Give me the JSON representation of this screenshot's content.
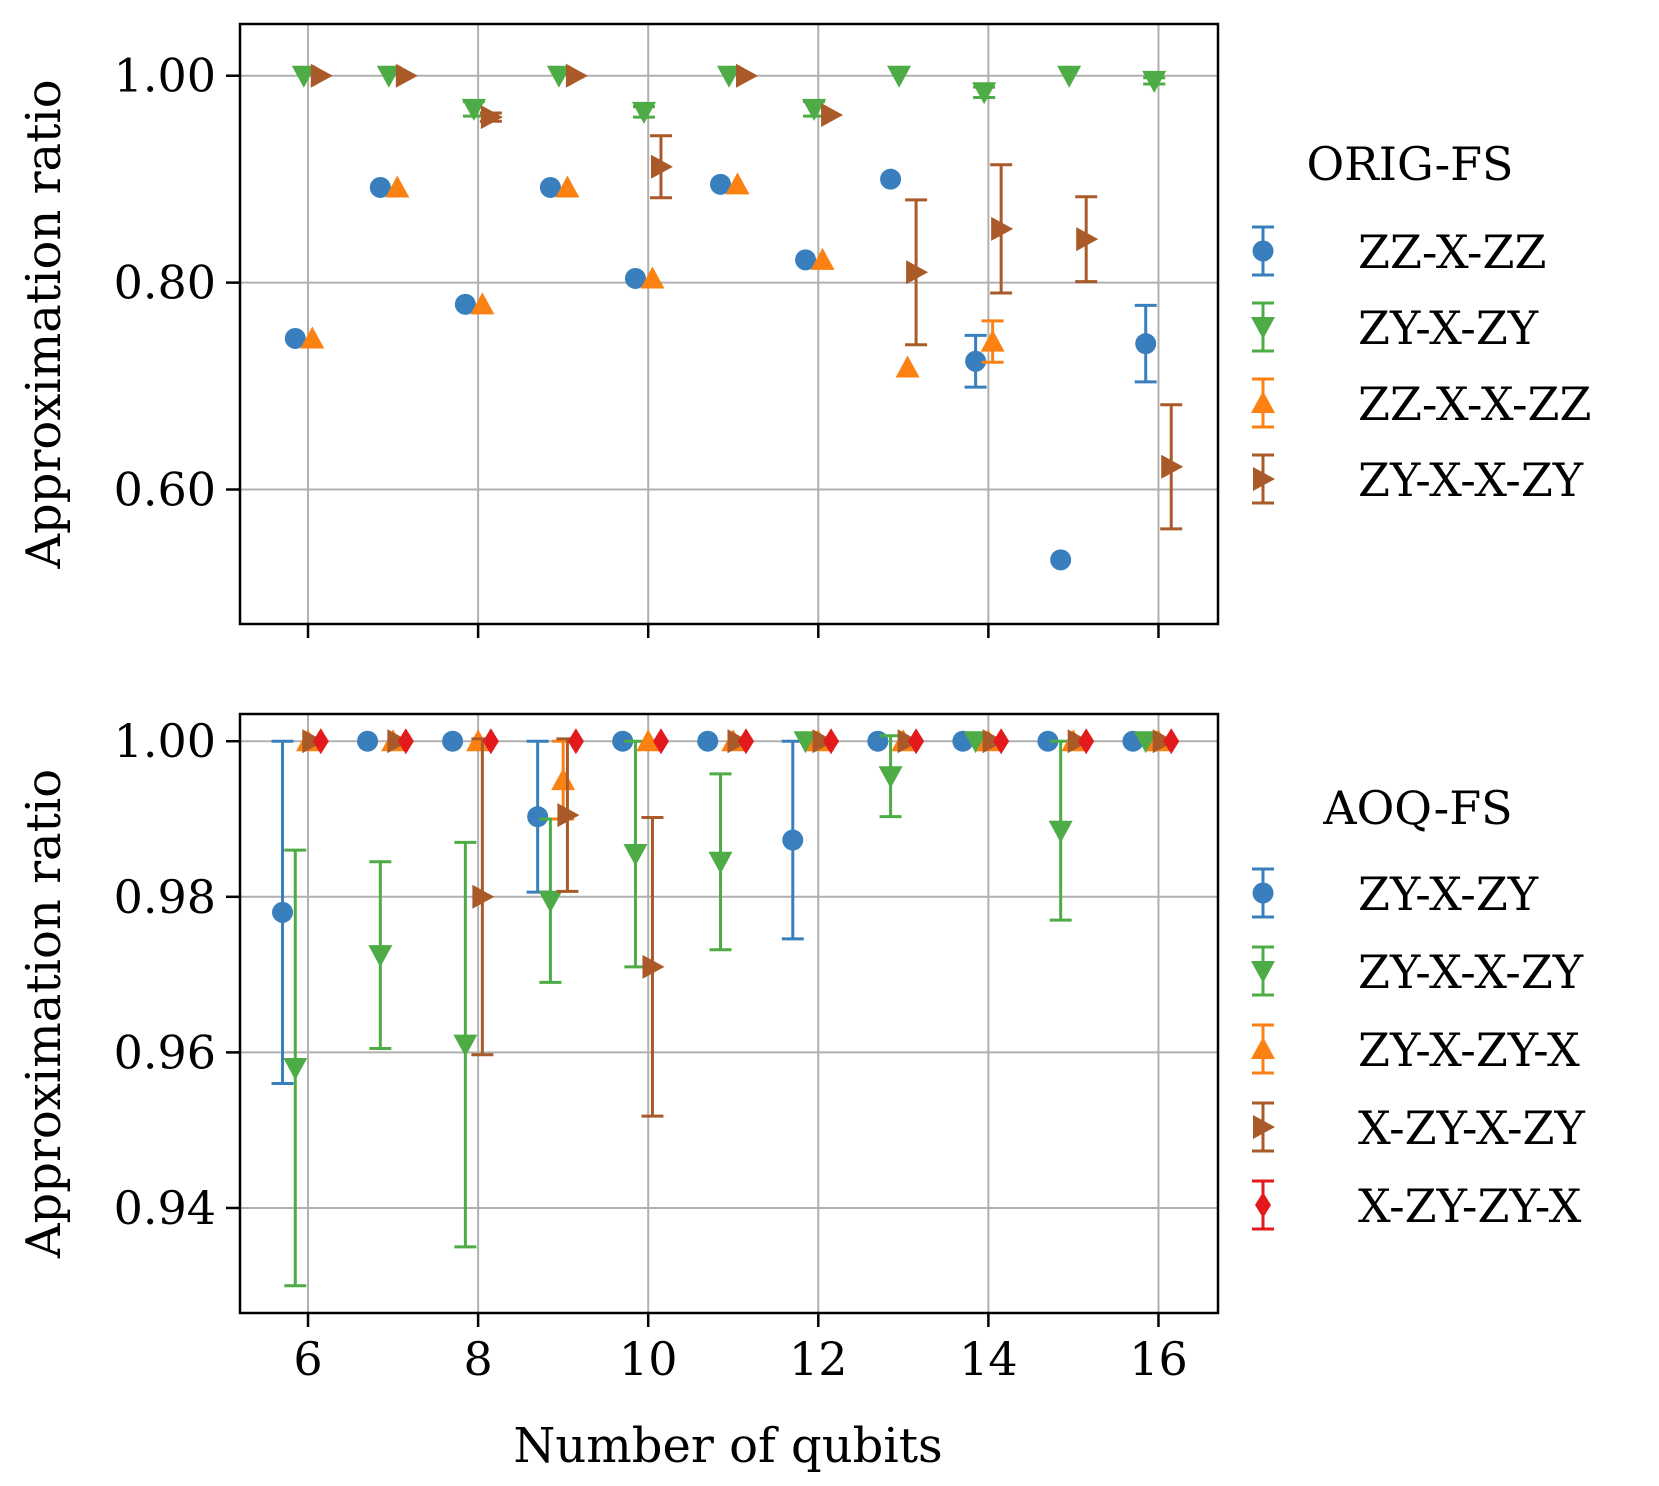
{
  "figure": {
    "xlabel": "Number of qubits"
  },
  "chart_data": [
    {
      "type": "scatter",
      "title": "",
      "xlabel": "",
      "ylabel": "Approximation ratio",
      "xlim": [
        5.2,
        16.7
      ],
      "ylim": [
        0.47,
        1.05
      ],
      "xticks": [
        6,
        8,
        10,
        12,
        14,
        16
      ],
      "xtick_labels": [
        "",
        "",
        "",
        "",
        "",
        ""
      ],
      "yticks": [
        0.6,
        0.8,
        1.0
      ],
      "ytick_labels": [
        "0.60",
        "0.80",
        "1.00"
      ],
      "grid": true,
      "legend": {
        "title": "ORIG-FS",
        "placement": "right"
      },
      "series": [
        {
          "name": "ZZ-X-ZZ",
          "color": "#3a7fbd",
          "marker": "circle",
          "x": [
            5.85,
            6.85,
            7.85,
            8.85,
            9.85,
            10.85,
            11.85,
            12.85,
            13.85,
            14.85,
            15.85
          ],
          "y": [
            0.746,
            0.892,
            0.779,
            0.892,
            0.804,
            0.895,
            0.822,
            0.9,
            0.724,
            0.532,
            0.741
          ],
          "err": [
            0,
            0,
            0,
            0,
            0,
            0,
            0,
            0,
            0.025,
            0,
            0.037
          ]
        },
        {
          "name": "ZY-X-ZY",
          "color": "#4dac45",
          "marker": "triangle-down",
          "x": [
            5.95,
            6.95,
            7.95,
            8.95,
            9.95,
            10.95,
            11.95,
            12.95,
            13.95,
            14.95,
            15.95
          ],
          "y": [
            1.0,
            1.0,
            0.968,
            1.0,
            0.965,
            1.0,
            0.968,
            1.0,
            0.984,
            1.0,
            0.995
          ],
          "err": [
            0,
            0,
            0.007,
            0,
            0.005,
            0,
            0.007,
            0,
            0.005,
            0,
            0.003
          ]
        },
        {
          "name": "ZZ-X-X-ZZ",
          "color": "#fb8113",
          "marker": "triangle-up",
          "x": [
            6.05,
            7.05,
            8.05,
            9.05,
            10.05,
            11.05,
            12.05,
            13.05,
            14.05
          ],
          "y": [
            0.746,
            0.892,
            0.779,
            0.892,
            0.804,
            0.895,
            0.822,
            0.718,
            0.743
          ],
          "err": [
            0,
            0,
            0,
            0,
            0,
            0,
            0,
            0,
            0.02
          ]
        },
        {
          "name": "ZY-X-X-ZY",
          "color": "#a95a28",
          "marker": "triangle-right",
          "x": [
            6.15,
            7.15,
            8.15,
            9.15,
            10.15,
            11.15,
            12.15,
            13.15,
            14.15,
            15.15,
            16.15
          ],
          "y": [
            1.0,
            1.0,
            0.96,
            1.0,
            0.912,
            1.0,
            0.962,
            0.81,
            0.852,
            0.842,
            0.622
          ],
          "err": [
            0,
            0,
            0.004,
            0,
            0.03,
            0,
            0,
            0.07,
            0.062,
            0.041,
            0.06
          ]
        }
      ]
    },
    {
      "type": "scatter",
      "title": "",
      "xlabel": "Number of qubits",
      "ylabel": "Approximation ratio",
      "xlim": [
        5.2,
        16.7
      ],
      "ylim": [
        0.9265,
        1.0035
      ],
      "xticks": [
        6,
        8,
        10,
        12,
        14,
        16
      ],
      "xtick_labels": [
        "6",
        "8",
        "10",
        "12",
        "14",
        "16"
      ],
      "yticks": [
        0.94,
        0.96,
        0.98,
        1.0
      ],
      "ytick_labels": [
        "0.94",
        "0.96",
        "0.98",
        "1.00"
      ],
      "grid": true,
      "legend": {
        "title": "AOQ-FS",
        "placement": "right"
      },
      "series": [
        {
          "name": "ZY-X-ZY",
          "color": "#3a7fbd",
          "marker": "circle",
          "x": [
            5.7,
            6.7,
            7.7,
            8.7,
            9.7,
            10.7,
            11.7,
            12.7,
            13.7,
            14.7,
            15.7
          ],
          "y": [
            0.978,
            1.0,
            1.0,
            0.9903,
            1.0,
            1.0,
            0.9873,
            1.0,
            1.0,
            1.0,
            1.0
          ],
          "err": [
            0.022,
            0,
            0,
            0.0097,
            0,
            0,
            0.0127,
            0,
            0,
            0,
            0
          ]
        },
        {
          "name": "ZY-X-X-ZY",
          "color": "#4dac45",
          "marker": "triangle-down",
          "x": [
            5.85,
            6.85,
            7.85,
            8.85,
            9.85,
            10.85,
            11.85,
            12.85,
            13.85,
            14.85,
            15.85
          ],
          "y": [
            0.958,
            0.9725,
            0.961,
            0.9795,
            0.9855,
            0.9845,
            1.0,
            0.9955,
            1.0,
            0.9885,
            1.0
          ],
          "err": [
            0.028,
            0.012,
            0.026,
            0.0105,
            0.0145,
            0.0113,
            0,
            0.0052,
            0,
            0.0115,
            0
          ]
        },
        {
          "name": "ZY-X-ZY-X",
          "color": "#fb8113",
          "marker": "triangle-up",
          "x": [
            6.0,
            7.0,
            8.0,
            9.0,
            10.0,
            11.0,
            12.0,
            13.0,
            14.0,
            15.0,
            16.0
          ],
          "y": [
            1.0,
            1.0,
            1.0,
            0.995,
            1.0,
            1.0,
            1.0,
            1.0,
            1.0,
            1.0,
            1.0
          ],
          "err": [
            0,
            0,
            0,
            0.005,
            0,
            0,
            0,
            0,
            0,
            0,
            0
          ]
        },
        {
          "name": "X-ZY-X-ZY",
          "color": "#a95a28",
          "marker": "triangle-right",
          "x": [
            6.05,
            7.05,
            8.05,
            9.05,
            10.05,
            11.05,
            12.05,
            13.05,
            14.05,
            15.05,
            16.05
          ],
          "y": [
            1.0,
            1.0,
            0.98,
            0.9905,
            0.971,
            1.0,
            1.0,
            1.0,
            1.0,
            1.0,
            1.0
          ],
          "err": [
            0,
            0,
            0.0203,
            0.0098,
            0.0192,
            0,
            0,
            0,
            0,
            0,
            0
          ]
        },
        {
          "name": "X-ZY-ZY-X",
          "color": "#e31a1c",
          "marker": "diamond",
          "x": [
            6.15,
            7.15,
            8.15,
            9.15,
            10.15,
            11.15,
            12.15,
            13.15,
            14.15,
            15.15,
            16.15
          ],
          "y": [
            1.0,
            1.0,
            1.0,
            1.0,
            1.0,
            1.0,
            1.0,
            1.0,
            1.0,
            1.0,
            1.0
          ],
          "err": [
            0,
            0,
            0,
            0,
            0,
            0,
            0,
            0,
            0,
            0,
            0
          ]
        }
      ]
    }
  ]
}
